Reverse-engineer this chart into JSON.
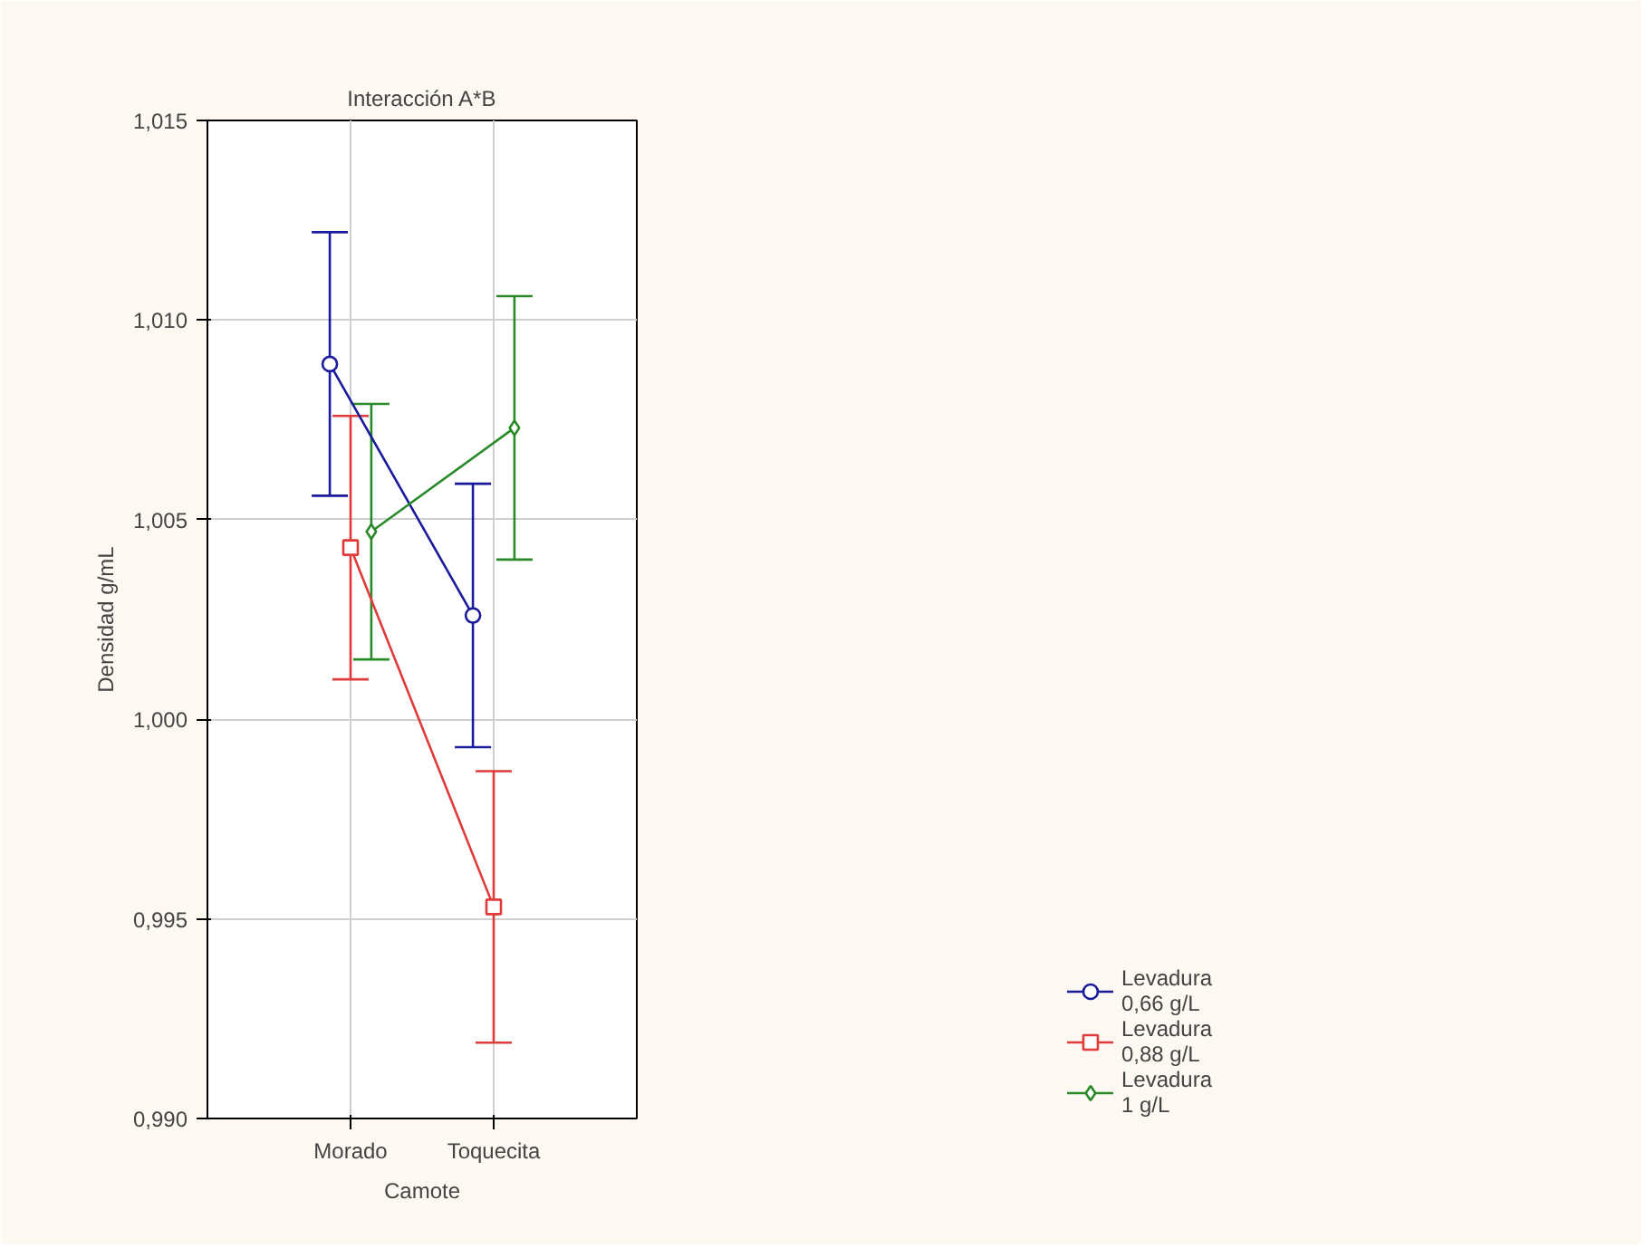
{
  "chart_data": {
    "type": "line",
    "title": "Interacción A*B",
    "xlabel": "Camote",
    "ylabel": "Densidad g/mL",
    "categories": [
      "Morado",
      "Toquecita"
    ],
    "series": [
      {
        "name": "Levadura 0,66 g/L",
        "color": "#1a1a9c",
        "marker": "circle",
        "values": [
          1.0089,
          1.0026
        ],
        "errors": [
          0.0033,
          0.0033
        ]
      },
      {
        "name": "Levadura 0,88 g/L",
        "color": "#e03a3a",
        "marker": "square",
        "values": [
          1.0043,
          0.9953
        ],
        "errors": [
          0.0033,
          0.0034
        ]
      },
      {
        "name": "Levadura 1 g/L",
        "color": "#2a8a2a",
        "marker": "diamond",
        "values": [
          1.0047,
          1.0073
        ],
        "errors": [
          0.0032,
          0.0033
        ]
      }
    ],
    "ylim": [
      0.99,
      1.015
    ],
    "yticks": [
      {
        "value": 0.99,
        "label": "0,990"
      },
      {
        "value": 0.995,
        "label": "0,995"
      },
      {
        "value": 1.0,
        "label": "1,000"
      },
      {
        "value": 1.005,
        "label": "1,005"
      },
      {
        "value": 1.01,
        "label": "1,010"
      },
      {
        "value": 1.015,
        "label": "1,015"
      }
    ],
    "grid": true,
    "legend": "bottom right",
    "line_style": "solid"
  }
}
